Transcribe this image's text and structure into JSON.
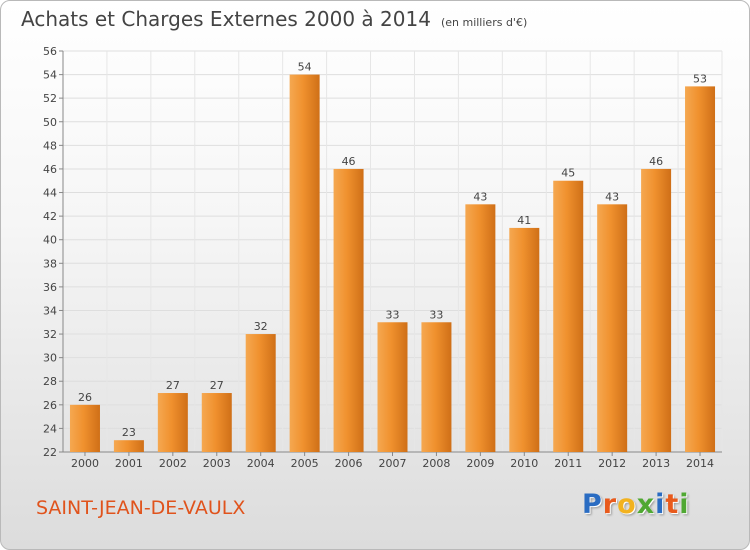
{
  "header": {
    "title": "Achats et Charges Externes 2000 à 2014",
    "subtitle": "(en milliers d'€)"
  },
  "footer": {
    "commune": "SAINT-JEAN-DE-VAULX",
    "brand": "Proxiti",
    "brand_colors": [
      "#2a6cc2",
      "#e85a1c",
      "#f2b21f",
      "#4fa832",
      "#2a6cc2",
      "#e85a1c",
      "#4fa832"
    ]
  },
  "colors": {
    "bar": "#f0912e",
    "bar_light": "#f5a851",
    "bar_dark": "#cf6f17",
    "commune": "#e0531c"
  },
  "chart_data": {
    "type": "bar",
    "title": "Achats et Charges Externes 2000 à 2014",
    "subtitle": "(en milliers d'€)",
    "categories": [
      "2000",
      "2001",
      "2002",
      "2003",
      "2004",
      "2005",
      "2006",
      "2007",
      "2008",
      "2009",
      "2010",
      "2011",
      "2012",
      "2013",
      "2014"
    ],
    "values": [
      26,
      23,
      27,
      27,
      32,
      54,
      46,
      33,
      33,
      43,
      41,
      45,
      43,
      46,
      53
    ],
    "ylim": [
      22,
      56
    ],
    "yticks": [
      22,
      24,
      26,
      28,
      30,
      32,
      34,
      36,
      38,
      40,
      42,
      44,
      46,
      48,
      50,
      52,
      54,
      56
    ],
    "grid": true,
    "data_labels": true
  }
}
